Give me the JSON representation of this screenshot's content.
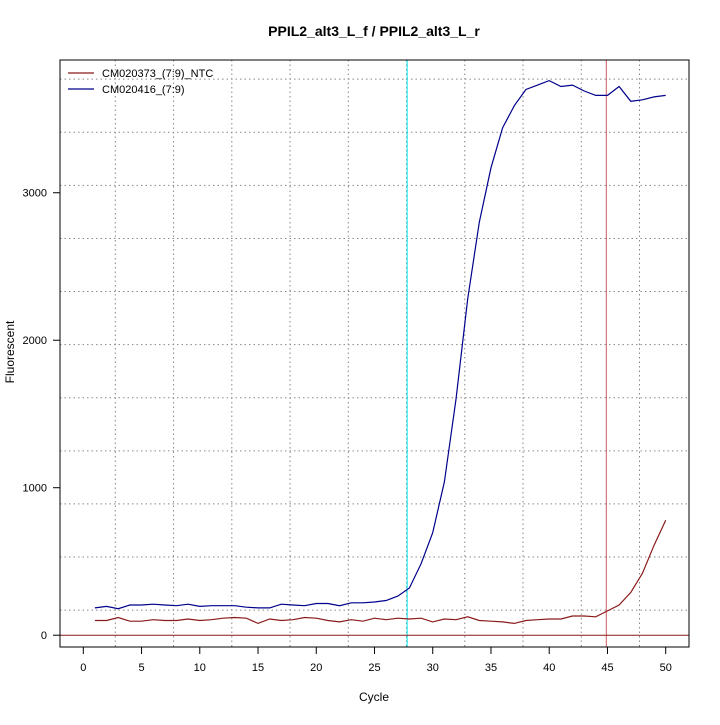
{
  "chart_data": {
    "type": "line",
    "title": "PPIL2_alt3_L_f / PPIL2_alt3_L_r",
    "xlabel": "Cycle",
    "ylabel": "Fluorescent",
    "xlim": [
      -2,
      52
    ],
    "ylim": [
      -80,
      3900
    ],
    "x_ticks": [
      0,
      5,
      10,
      15,
      20,
      25,
      30,
      35,
      40,
      45,
      50
    ],
    "y_ticks": [
      0,
      1000,
      2000,
      3000
    ],
    "grid": true,
    "grid_x": [
      2.75,
      7.75,
      12.75,
      17.75,
      22.75,
      27.75,
      32.75,
      37.75,
      42.75,
      47.75
    ],
    "grid_y": [
      -190,
      170,
      530,
      890,
      1250,
      1610,
      1970,
      2330,
      2690,
      3050,
      3410,
      3770
    ],
    "baseline": 0,
    "markers": [
      {
        "x": 27.8,
        "color": "#00E5EE"
      },
      {
        "x": 44.9,
        "color": "#CD5C5C"
      }
    ],
    "legend_position": "top-left",
    "x": [
      1,
      2,
      3,
      4,
      5,
      6,
      7,
      8,
      9,
      10,
      11,
      12,
      13,
      14,
      15,
      16,
      17,
      18,
      19,
      20,
      21,
      22,
      23,
      24,
      25,
      26,
      27,
      28,
      29,
      30,
      31,
      32,
      33,
      34,
      35,
      36,
      37,
      38,
      39,
      40,
      41,
      42,
      43,
      44,
      45,
      46,
      47,
      48,
      49,
      50
    ],
    "series": [
      {
        "name": "CM020373_(7:9)_NTC",
        "color": "#8B1A1A",
        "values": [
          100,
          100,
          120,
          95,
          95,
          105,
          100,
          100,
          110,
          100,
          105,
          115,
          120,
          115,
          80,
          110,
          100,
          105,
          120,
          115,
          100,
          90,
          105,
          95,
          115,
          105,
          115,
          110,
          115,
          90,
          110,
          105,
          125,
          100,
          95,
          90,
          80,
          100,
          105,
          110,
          110,
          130,
          130,
          125,
          165,
          205,
          290,
          420,
          610,
          780
        ]
      },
      {
        "name": "CM020416_(7:9)",
        "color": "#00008B",
        "values": [
          185,
          195,
          180,
          205,
          205,
          210,
          205,
          200,
          210,
          195,
          200,
          200,
          200,
          190,
          185,
          185,
          210,
          205,
          200,
          215,
          215,
          200,
          220,
          220,
          225,
          235,
          265,
          320,
          485,
          695,
          1040,
          1600,
          2280,
          2800,
          3170,
          3440,
          3590,
          3700,
          3730,
          3760,
          3720,
          3730,
          3690,
          3660,
          3660,
          3720,
          3620,
          3630,
          3650,
          3660
        ]
      }
    ]
  }
}
